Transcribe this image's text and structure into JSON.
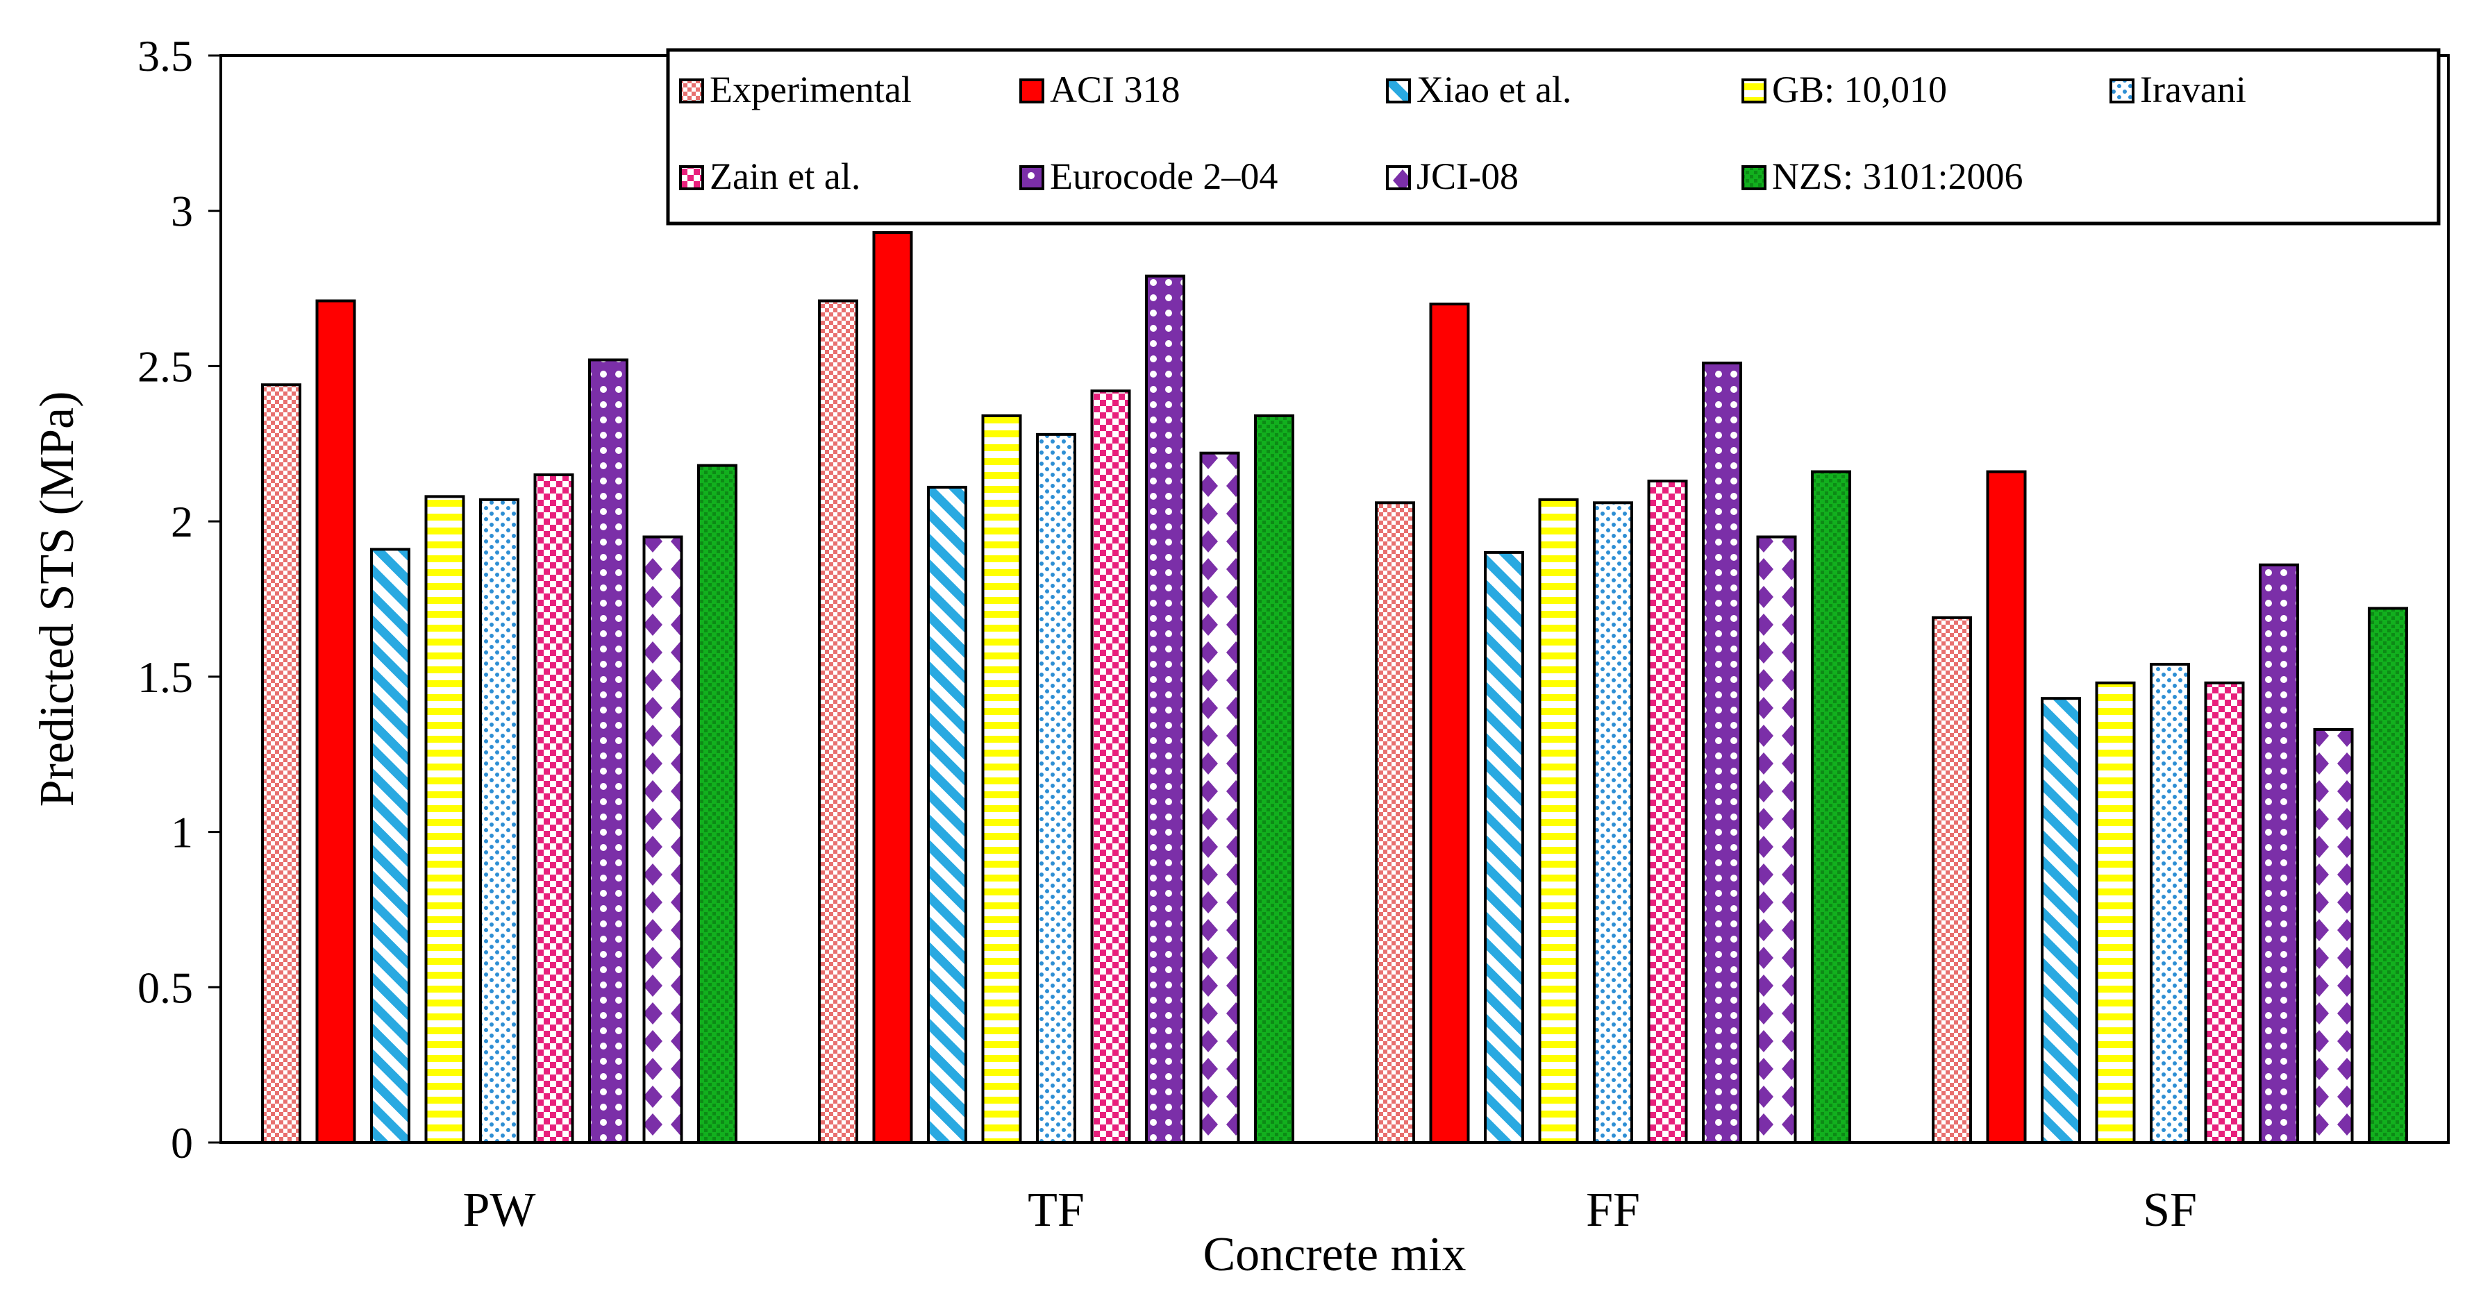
{
  "chart_data": {
    "type": "bar",
    "title": "",
    "xlabel": "Concrete mix",
    "ylabel": "Predicted STS (MPa)",
    "ylim": [
      0,
      3.5
    ],
    "yticks": [
      "0",
      "0.5",
      "1",
      "1.5",
      "2",
      "2.5",
      "3",
      "3.5"
    ],
    "grid": false,
    "legend_position": "top-right",
    "categories": [
      "PW",
      "TF",
      "FF",
      "SF"
    ],
    "series": [
      {
        "name": "Experimental",
        "values": [
          2.44,
          2.71,
          2.06,
          1.69
        ],
        "color": "#e8706f",
        "pattern": "checker"
      },
      {
        "name": "ACI 318",
        "values": [
          2.71,
          2.93,
          2.7,
          2.16
        ],
        "color": "#ff0000",
        "pattern": "solid"
      },
      {
        "name": "Xiao et al.",
        "values": [
          1.91,
          2.11,
          1.9,
          1.43
        ],
        "color": "#29a9e1",
        "pattern": "diagonal"
      },
      {
        "name": "GB: 10,010",
        "values": [
          2.08,
          2.34,
          2.07,
          1.48
        ],
        "color": "#ffff00",
        "pattern": "horizontal"
      },
      {
        "name": "Iravani",
        "values": [
          2.07,
          2.28,
          2.06,
          1.54
        ],
        "color": "#2e8fd4",
        "pattern": "dots"
      },
      {
        "name": "Zain et al.",
        "values": [
          2.15,
          2.42,
          2.13,
          1.48
        ],
        "color": "#e8207c",
        "pattern": "checker"
      },
      {
        "name": "Eurocode 2–04",
        "values": [
          2.52,
          2.79,
          2.51,
          1.86
        ],
        "color": "#7b2fa8",
        "pattern": "beads"
      },
      {
        "name": "JCI-08",
        "values": [
          1.95,
          2.22,
          1.95,
          1.33
        ],
        "color": "#7b2fa8",
        "pattern": "diamonds"
      },
      {
        "name": "NZS: 3101:2006",
        "values": [
          2.18,
          2.34,
          2.16,
          1.72
        ],
        "color": "#12b01e",
        "pattern": "grid"
      }
    ]
  }
}
